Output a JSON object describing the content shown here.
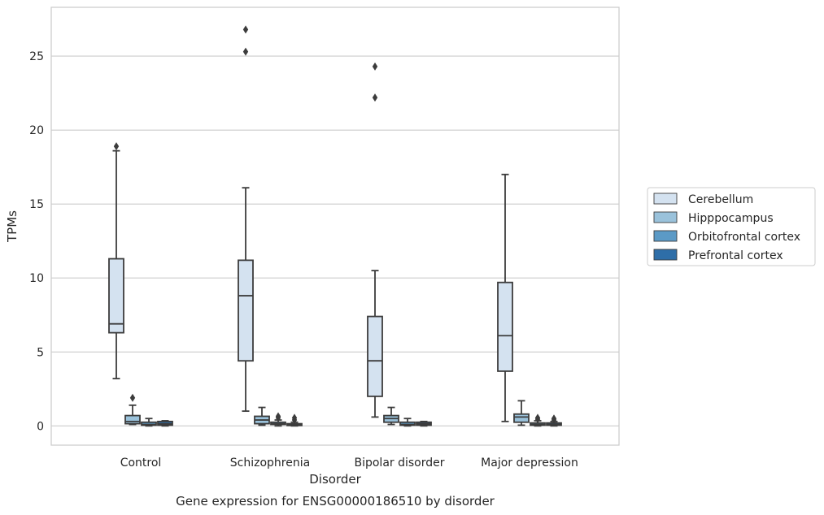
{
  "caption": "Gene expression for ENSG00000186510 by disorder",
  "chart_data": {
    "type": "box",
    "xlabel": "Disorder",
    "ylabel": "TPMs",
    "ylim": [
      -1.3,
      28.3
    ],
    "yticks": [
      0,
      5,
      10,
      15,
      20,
      25
    ],
    "grid": "y",
    "legend_position": "right",
    "categories": [
      "Control",
      "Schizophrenia",
      "Bipolar disorder",
      "Major depression"
    ],
    "series": [
      {
        "name": "Cerebellum",
        "color": "#d4e2f0",
        "boxes": [
          {
            "whislo": 3.2,
            "q1": 6.3,
            "med": 6.9,
            "q3": 11.3,
            "whishi": 18.6,
            "fliers": [
              18.9
            ]
          },
          {
            "whislo": 1.0,
            "q1": 4.4,
            "med": 8.8,
            "q3": 11.2,
            "whishi": 16.1,
            "fliers": [
              25.3,
              26.8
            ]
          },
          {
            "whislo": 0.6,
            "q1": 2.0,
            "med": 4.4,
            "q3": 7.4,
            "whishi": 10.5,
            "fliers": [
              22.2,
              24.3
            ]
          },
          {
            "whislo": 0.3,
            "q1": 3.7,
            "med": 6.1,
            "q3": 9.7,
            "whishi": 17.0,
            "fliers": []
          }
        ]
      },
      {
        "name": "Hipppocampus",
        "color": "#9ac2db",
        "boxes": [
          {
            "whislo": 0.1,
            "q1": 0.15,
            "med": 0.3,
            "q3": 0.7,
            "whishi": 1.4,
            "fliers": [
              1.9
            ]
          },
          {
            "whislo": 0.05,
            "q1": 0.15,
            "med": 0.4,
            "q3": 0.65,
            "whishi": 1.25,
            "fliers": []
          },
          {
            "whislo": 0.1,
            "q1": 0.25,
            "med": 0.5,
            "q3": 0.7,
            "whishi": 1.25,
            "fliers": []
          },
          {
            "whislo": 0.05,
            "q1": 0.25,
            "med": 0.6,
            "q3": 0.8,
            "whishi": 1.7,
            "fliers": []
          }
        ]
      },
      {
        "name": "Orbitofrontal cortex",
        "color": "#5b9ac6",
        "boxes": [
          {
            "whislo": 0.0,
            "q1": 0.05,
            "med": 0.1,
            "q3": 0.25,
            "whishi": 0.5,
            "fliers": []
          },
          {
            "whislo": 0.0,
            "q1": 0.1,
            "med": 0.15,
            "q3": 0.25,
            "whishi": 0.4,
            "fliers": [
              0.55,
              0.65
            ]
          },
          {
            "whislo": 0.0,
            "q1": 0.05,
            "med": 0.1,
            "q3": 0.25,
            "whishi": 0.5,
            "fliers": []
          },
          {
            "whislo": 0.0,
            "q1": 0.05,
            "med": 0.1,
            "q3": 0.2,
            "whishi": 0.35,
            "fliers": [
              0.45,
              0.55
            ]
          }
        ]
      },
      {
        "name": "Prefrontal cortex",
        "color": "#2e6ea8",
        "boxes": [
          {
            "whislo": 0.0,
            "q1": 0.05,
            "med": 0.15,
            "q3": 0.3,
            "whishi": 0.35,
            "fliers": []
          },
          {
            "whislo": 0.0,
            "q1": 0.03,
            "med": 0.08,
            "q3": 0.15,
            "whishi": 0.25,
            "fliers": [
              0.4,
              0.55
            ]
          },
          {
            "whislo": 0.0,
            "q1": 0.05,
            "med": 0.15,
            "q3": 0.25,
            "whishi": 0.3,
            "fliers": []
          },
          {
            "whislo": 0.0,
            "q1": 0.05,
            "med": 0.1,
            "q3": 0.2,
            "whishi": 0.3,
            "fliers": [
              0.4,
              0.5
            ]
          }
        ]
      }
    ]
  }
}
